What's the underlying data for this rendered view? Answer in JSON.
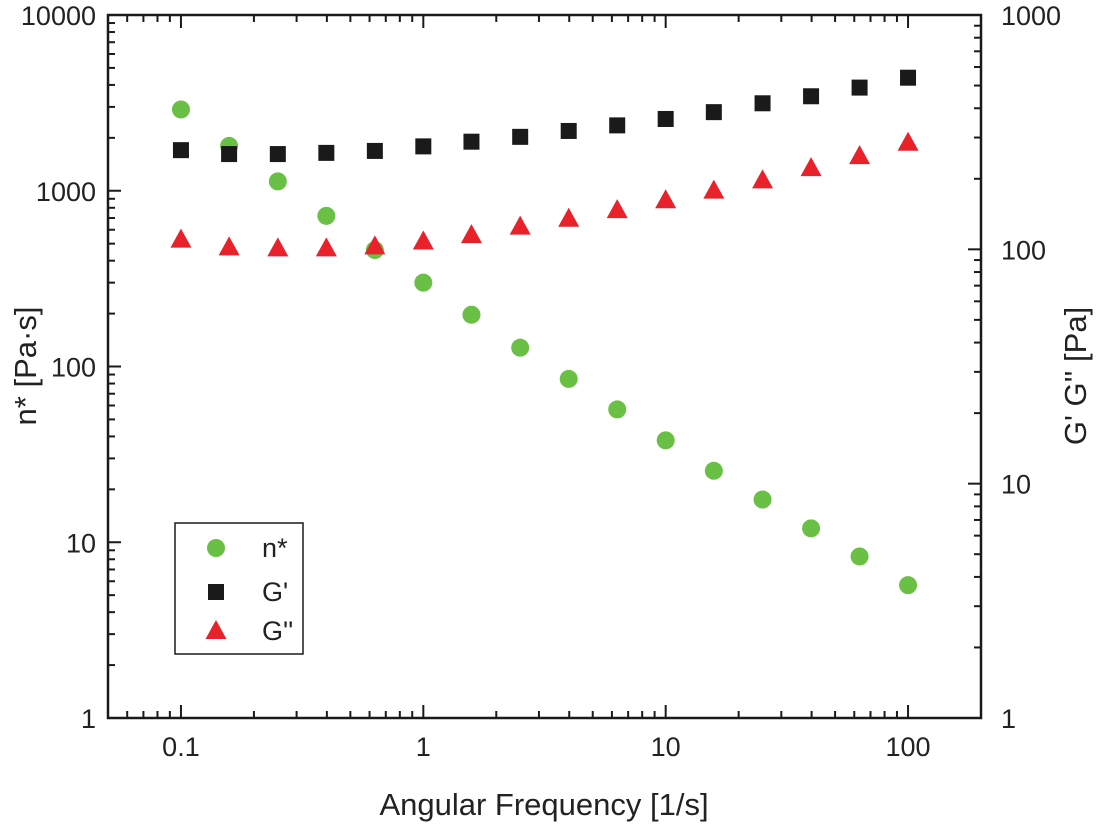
{
  "chart_data": {
    "type": "scatter",
    "xlabel": "Angular Frequency [1/s]",
    "ylabel_left": "n* [Pa·s]",
    "ylabel_right": "G' G'' [Pa]",
    "x_scale": "log",
    "y_scale_left": "log",
    "y_scale_right": "log",
    "xlim": [
      0.05,
      200
    ],
    "ylim_left": [
      1,
      10000
    ],
    "ylim_right": [
      1,
      1000
    ],
    "x_ticks": [
      {
        "value": 0.1,
        "label": "0.1"
      },
      {
        "value": 1,
        "label": "1"
      },
      {
        "value": 10,
        "label": "10"
      },
      {
        "value": 100,
        "label": "100"
      }
    ],
    "y_ticks_left": [
      {
        "value": 1,
        "label": "1"
      },
      {
        "value": 10,
        "label": "10"
      },
      {
        "value": 100,
        "label": "100"
      },
      {
        "value": 1000,
        "label": "1000"
      },
      {
        "value": 10000,
        "label": "10000"
      }
    ],
    "y_ticks_right": [
      {
        "value": 1,
        "label": "1"
      },
      {
        "value": 10,
        "label": "10"
      },
      {
        "value": 100,
        "label": "100"
      },
      {
        "value": 1000,
        "label": "1000"
      }
    ],
    "grid": false,
    "legend_position": "bottom-left",
    "x": [
      0.1,
      0.158,
      0.251,
      0.398,
      0.631,
      1,
      1.58,
      2.51,
      3.98,
      6.31,
      10,
      15.8,
      25.1,
      39.8,
      63.1,
      100
    ],
    "series": [
      {
        "name": "n*",
        "axis": "left",
        "marker": "circle",
        "color": "#6abf45",
        "values": [
          2900,
          1800,
          1130,
          720,
          460,
          300,
          197,
          128,
          85,
          57,
          38,
          25.5,
          17.5,
          12,
          8.3,
          5.7
        ]
      },
      {
        "name": "G'",
        "axis": "right",
        "marker": "square",
        "color": "#1a1a1a",
        "values": [
          265,
          255,
          255,
          258,
          263,
          275,
          288,
          302,
          320,
          338,
          360,
          385,
          420,
          450,
          490,
          540
        ]
      },
      {
        "name": "G''",
        "axis": "right",
        "marker": "triangle",
        "color": "#e8212b",
        "values": [
          110,
          102,
          101,
          101,
          103,
          108,
          115,
          125,
          135,
          147,
          162,
          178,
          197,
          222,
          250,
          285
        ]
      }
    ]
  }
}
